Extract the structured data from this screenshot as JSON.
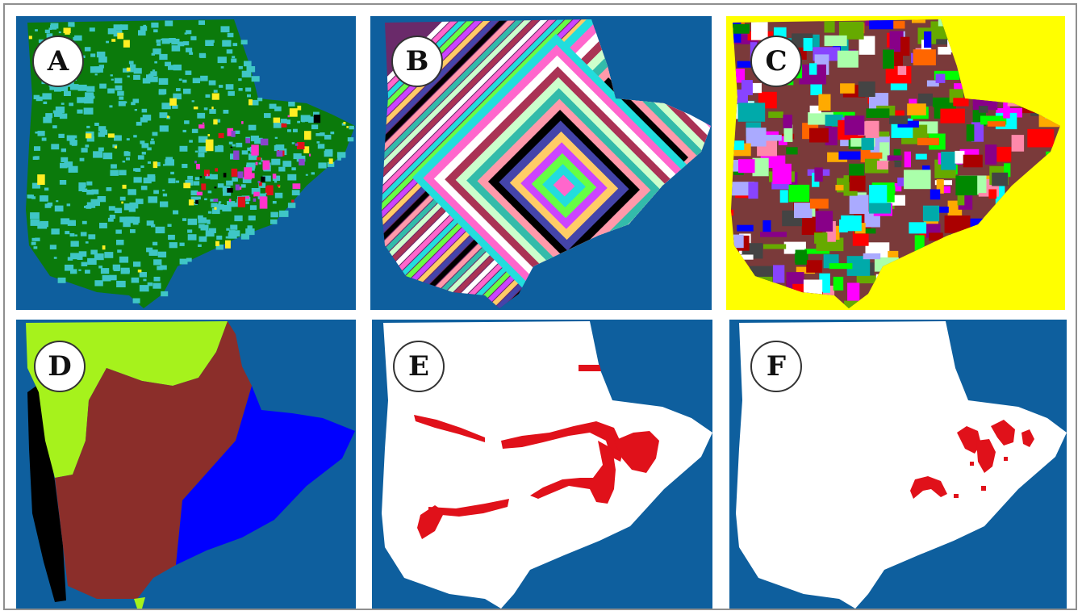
{
  "colors": {
    "water": "#0e5f9e",
    "forest": "#0b7a0b",
    "secondary": "#3fc6c6",
    "panel_c_background": "#ffff00",
    "brown_region": "#8b2e2a",
    "lime_region": "#a6f21c",
    "blue_region": "#0000ff",
    "white_region": "#ffffff",
    "highlight": "#e0111a"
  },
  "panels": [
    {
      "id": "A",
      "label": "A"
    },
    {
      "id": "B",
      "label": "B"
    },
    {
      "id": "C",
      "label": "C"
    },
    {
      "id": "D",
      "label": "D"
    },
    {
      "id": "E",
      "label": "E"
    },
    {
      "id": "F",
      "label": "F"
    }
  ]
}
